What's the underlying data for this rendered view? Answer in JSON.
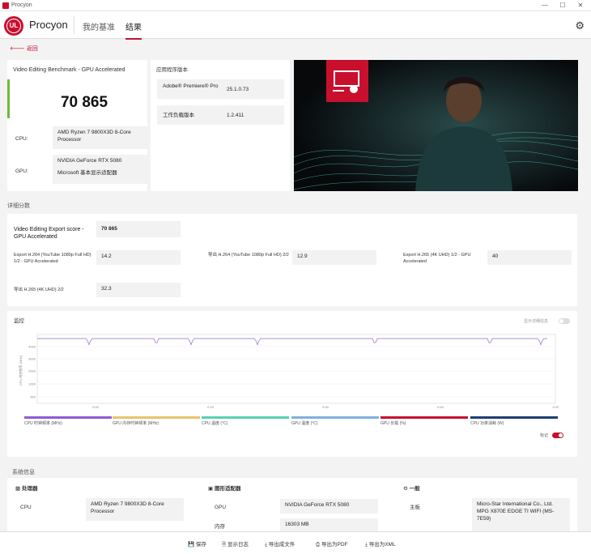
{
  "window": {
    "title": "Procyon"
  },
  "header": {
    "logo": "UL",
    "brand": "Procyon",
    "nav_benchmarks": "我的基准",
    "nav_results": "结果"
  },
  "back_label": "返回",
  "score_card": {
    "title": "Video Editing Benchmark - GPU Accelerated",
    "score": "70 865",
    "cpu_label": "CPU:",
    "cpu_value": "AMD Ryzen 7 9800X3D 8-Core Processor",
    "gpu_label": "GPU:",
    "gpu_value_1": "NVIDIA GeForce RTX 5080",
    "gpu_value_2": "Microsoft 基本显示适配器"
  },
  "app_version": {
    "title": "应用程序版本",
    "rows": [
      {
        "label": "Adobe® Premiere® Pro",
        "value": "25.1.0.73"
      },
      {
        "label": "工作负载版本",
        "value": "1.2.411"
      }
    ]
  },
  "detail": {
    "section_title": "详细分数",
    "main_label": "Video Editing Export score - GPU Accelerated",
    "main_value": "70 865",
    "items": [
      {
        "label": "Export H.264 (YouTube 1080p Full HD) 1/2 - GPU Accelerated",
        "value": "14.2"
      },
      {
        "label": "导出 H.264 (YouTube 1080p Full HD) 2/2",
        "value": "12.9"
      },
      {
        "label": "Export H.265 (4K UHD) 1/2 - GPU Accelerated",
        "value": "40"
      },
      {
        "label": "导出 H.265 (4K UHD) 2/2",
        "value": "32.3"
      }
    ]
  },
  "monitor": {
    "title": "监控",
    "toggle_markers": "显示详细信息",
    "y_axis_label": "CPU 时钟频率 (MHz)",
    "y_ticks": [
      "4000",
      "3000",
      "2000",
      "1000",
      "500"
    ],
    "x_ticks": [
      "0:00",
      "0:15",
      "0:30",
      "0:45",
      "1:00"
    ],
    "legend": [
      {
        "name": "CPU 时钟频率 (MHz)",
        "color": "#8e5bd6"
      },
      {
        "name": "GPU 内存时钟频率 (MHz)",
        "color": "#e8c36a"
      },
      {
        "name": "CPU 温度 (°C)",
        "color": "#59d0b0"
      },
      {
        "name": "GPU 温度 (°C)",
        "color": "#7fb0e0"
      },
      {
        "name": "GPU 负载 (%)",
        "color": "#c8102e"
      },
      {
        "name": "CPU 功率消耗 (W)",
        "color": "#1e3c72"
      }
    ],
    "marker_label": "标记"
  },
  "sysinfo": {
    "section_title": "系统信息",
    "cpu_title": "处理器",
    "cpu_row_label": "CPU",
    "cpu_row_value": "AMD Ryzen 7 9800X3D 8-Core Processor",
    "gpu_title": "图形适配器",
    "gpu_row_label": "GPU",
    "gpu_row_value": "NVIDIA GeForce RTX 5080",
    "mem_row_label": "内存",
    "mem_row_value": "16303 MB",
    "general_title": "一般",
    "board_label": "主板",
    "board_value": "Micro-Star International Co., Ltd. MPG X870E EDGE TI WIFI (MS-7E59)"
  },
  "footer": {
    "save": "保存",
    "show_log": "显示日志",
    "export_folder": "导出成文件",
    "export_pdf": "导出为PDF",
    "export_xml": "导出为XML"
  },
  "colors": {
    "accent": "#c8102e",
    "score_bar": "#6dbb3a"
  }
}
